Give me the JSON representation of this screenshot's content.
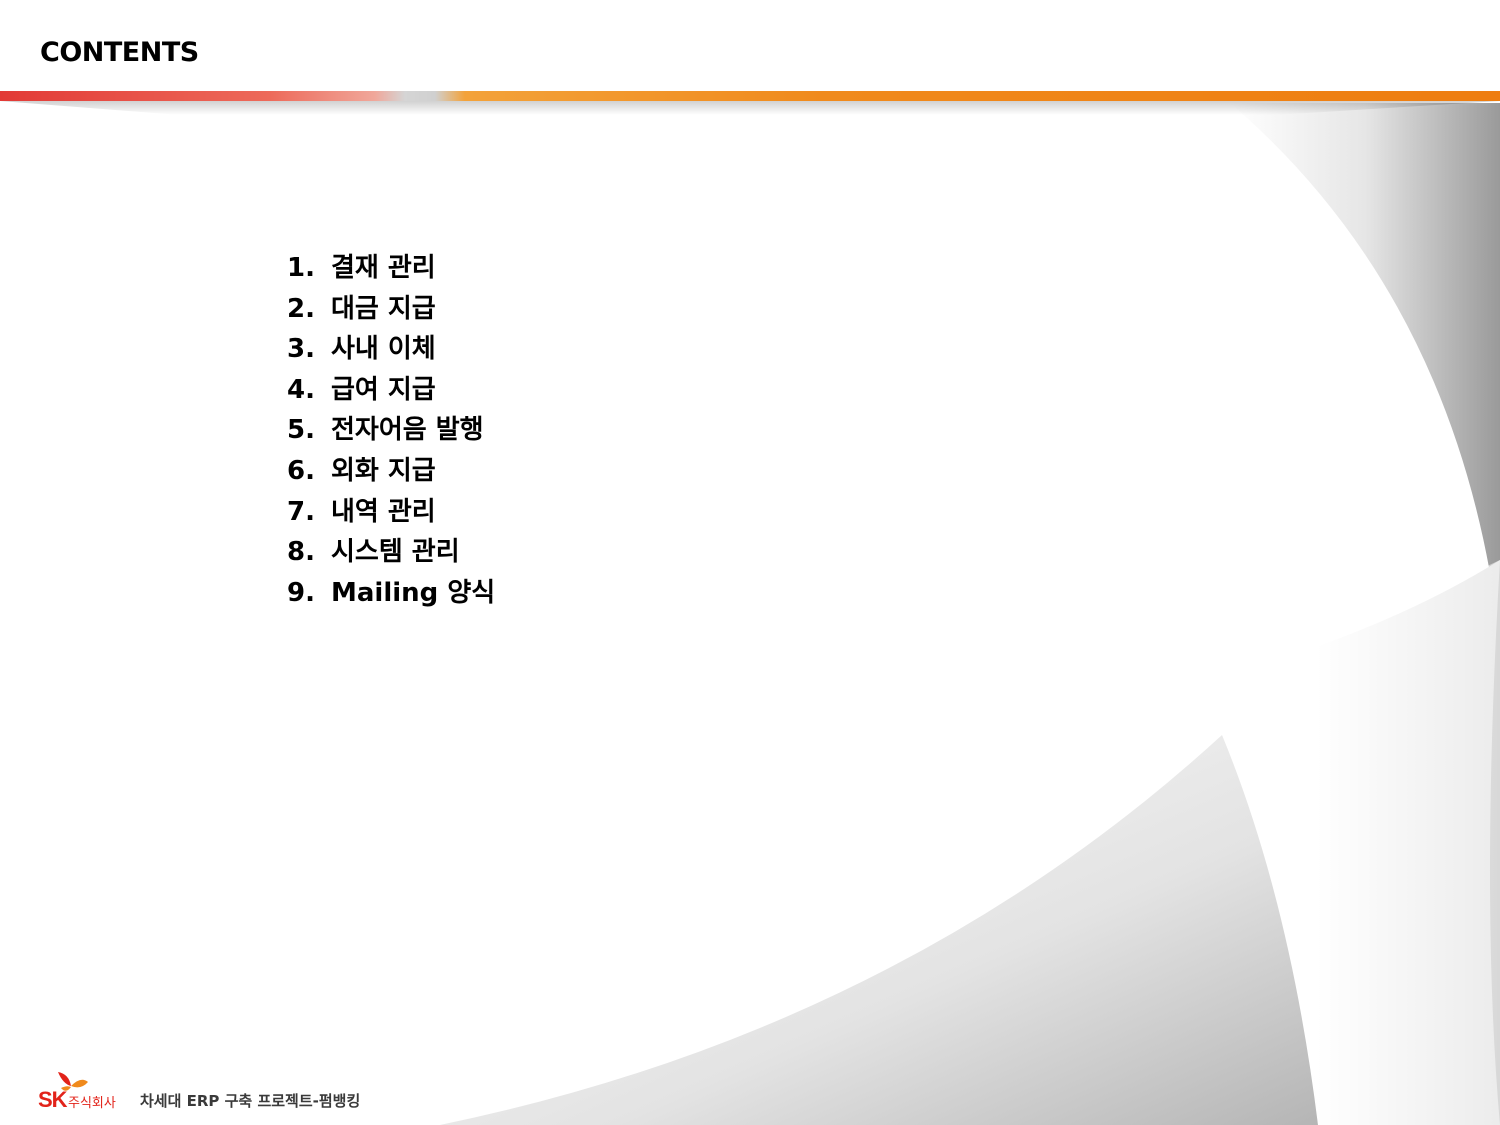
{
  "slide": {
    "title": "CONTENTS"
  },
  "toc": [
    {
      "number": "1.",
      "label": "결재 관리"
    },
    {
      "number": "2.",
      "label": "대금 지급"
    },
    {
      "number": "3.",
      "label": "사내 이체"
    },
    {
      "number": "4.",
      "label": "급여 지급"
    },
    {
      "number": "5.",
      "label": "전자어음 발행"
    },
    {
      "number": "6.",
      "label": "외화 지급"
    },
    {
      "number": "7.",
      "label": "내역 관리"
    },
    {
      "number": "8.",
      "label": "시스템 관리"
    },
    {
      "number": "9.",
      "label": "Mailing 양식"
    }
  ],
  "footer": {
    "logo_text": "SK",
    "company": "주식회사",
    "project": "차세대 ERP 구축 프로젝트-펌뱅킹"
  },
  "colors": {
    "brand_red": "#e2231a",
    "brand_orange": "#ee7d10"
  }
}
